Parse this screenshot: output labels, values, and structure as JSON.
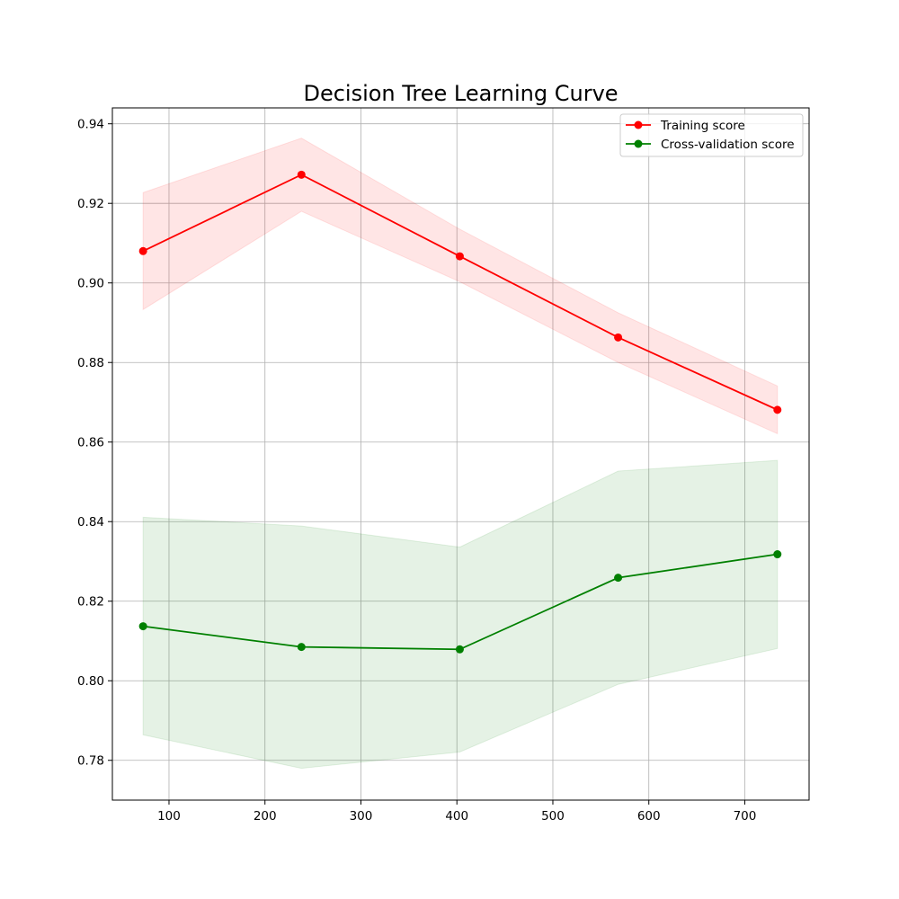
{
  "chart_data": {
    "type": "line",
    "title": "Decision Tree Learning Curve",
    "xlabel": "",
    "ylabel": "",
    "x": [
      73,
      238,
      403,
      568,
      734
    ],
    "xlim": [
      41,
      767
    ],
    "ylim": [
      0.77,
      0.944
    ],
    "xticks": [
      100,
      200,
      300,
      400,
      500,
      600,
      700
    ],
    "yticks": [
      0.78,
      0.8,
      0.82,
      0.84,
      0.86,
      0.88,
      0.9,
      0.92,
      0.94
    ],
    "xtick_labels": [
      "100",
      "200",
      "300",
      "400",
      "500",
      "600",
      "700"
    ],
    "ytick_labels": [
      "0.78",
      "0.80",
      "0.82",
      "0.84",
      "0.86",
      "0.88",
      "0.90",
      "0.92",
      "0.94"
    ],
    "grid": true,
    "legend_position": "top-right",
    "series": [
      {
        "name": "Training score",
        "color": "#ff0000",
        "values": [
          0.908,
          0.9272,
          0.9067,
          0.8863,
          0.8681
        ],
        "band_upper": [
          0.9227,
          0.9364,
          0.9135,
          0.8925,
          0.8741
        ],
        "band_lower": [
          0.8933,
          0.918,
          0.9003,
          0.88,
          0.8621
        ]
      },
      {
        "name": "Cross-validation score",
        "color": "#008000",
        "values": [
          0.8137,
          0.8085,
          0.8079,
          0.8259,
          0.8318
        ],
        "band_upper": [
          0.8411,
          0.8389,
          0.8336,
          0.8527,
          0.8554
        ],
        "band_lower": [
          0.7864,
          0.778,
          0.7821,
          0.7991,
          0.8081
        ]
      }
    ]
  }
}
